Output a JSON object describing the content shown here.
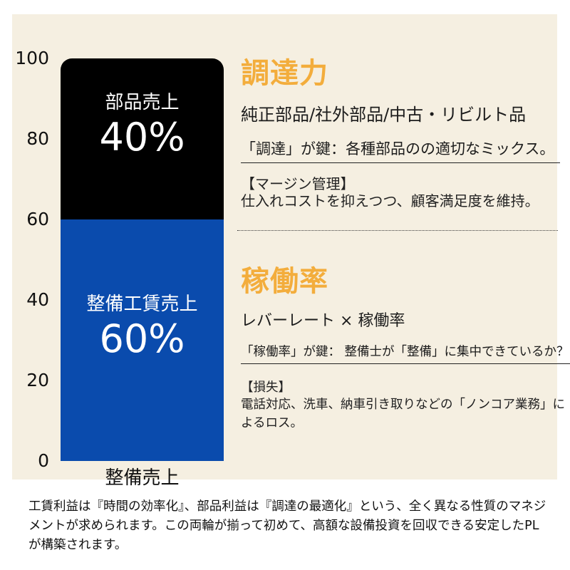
{
  "chart_data": {
    "type": "bar",
    "stacked": true,
    "title": "",
    "categories": [
      "整備売上"
    ],
    "series": [
      {
        "name": "部品売上",
        "values": [
          40
        ],
        "color": "#000000",
        "label": "部品売上",
        "pct_label": "40%"
      },
      {
        "name": "整備工賃売上",
        "values": [
          60
        ],
        "color": "#0a4bad",
        "label": "整備工賃売上",
        "pct_label": "60%"
      }
    ],
    "ylim": [
      0,
      100
    ],
    "ytick_labels": [
      "100",
      "80",
      "60",
      "40",
      "20",
      "0"
    ],
    "grid": false,
    "legend": "none"
  },
  "sections": {
    "procurement": {
      "heading": "調達力",
      "formula": "純正部品/社外部品/中古・リビルト品",
      "key_point": "「調達」が鍵：各種部品のの適切なミックス。",
      "sub_title": "【マージン管理】",
      "sub_body": "仕入れコストを抑えつつ、顧客満足度を維持。"
    },
    "utilization": {
      "heading": "稼働率",
      "formula": "レバーレート × 稼働率",
      "key_point": "「稼働率」が鍵： 整備士が「整備」に集中できているか？",
      "sub_title": "【損失】",
      "sub_body": "電話対応、洗車、納車引き取りなどの「ノンコア業務」によるロス。"
    }
  },
  "footer": {
    "text": "工賃利益は『時間の効率化』、部品利益は『調達の最適化』という、全く異なる性質のマネジメントが求められます。この両輪が揃って初めて、高額な設備投資を回収できる安定したPLが構築されます。"
  },
  "colors": {
    "background": "#ffffff",
    "panel": "#f5efe1",
    "accent_orange": "#f3ad3c",
    "bar_blue": "#0a4bad",
    "bar_black": "#000000",
    "text": "#1c1c1c"
  }
}
